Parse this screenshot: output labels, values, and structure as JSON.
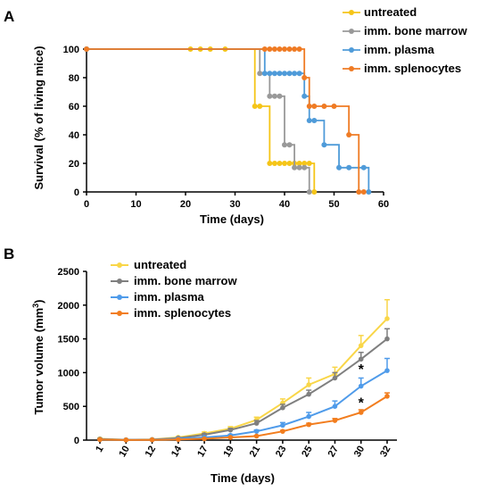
{
  "chart_data": [
    {
      "panel": "A",
      "type": "line",
      "xlabel": "Time (days)",
      "ylabel": "Survival (% of living mice)",
      "xlim": [
        0,
        60
      ],
      "ylim": [
        0,
        100
      ],
      "xticks": [
        0,
        10,
        20,
        30,
        40,
        50,
        60
      ],
      "yticks": [
        0,
        20,
        40,
        60,
        80,
        100
      ],
      "legend_position": "top-right",
      "series": [
        {
          "name": "untreated",
          "color": "#f5c518",
          "x": [
            0,
            21,
            23,
            25,
            28,
            34,
            35,
            37,
            38,
            39,
            40,
            41,
            42,
            43,
            44,
            45,
            46
          ],
          "y": [
            100,
            100,
            100,
            100,
            100,
            60,
            60,
            20,
            20,
            20,
            20,
            20,
            20,
            20,
            20,
            20,
            0
          ]
        },
        {
          "name": "imm. bone marrow",
          "color": "#999999",
          "x": [
            0,
            35,
            37,
            38,
            39,
            40,
            41,
            42,
            43,
            44,
            45
          ],
          "y": [
            100,
            83,
            67,
            67,
            67,
            33,
            33,
            17,
            17,
            17,
            0
          ]
        },
        {
          "name": "imm. plasma",
          "color": "#4f9bd9",
          "x": [
            0,
            36,
            37,
            38,
            39,
            40,
            41,
            42,
            43,
            44,
            45,
            46,
            48,
            51,
            53,
            56,
            57
          ],
          "y": [
            100,
            83,
            83,
            83,
            83,
            83,
            83,
            83,
            83,
            67,
            50,
            50,
            33,
            17,
            17,
            17,
            0
          ]
        },
        {
          "name": "imm. splenocytes",
          "color": "#ef7b24",
          "x": [
            0,
            36,
            37,
            38,
            39,
            40,
            41,
            42,
            43,
            44,
            45,
            46,
            48,
            50,
            53,
            55,
            56
          ],
          "y": [
            100,
            100,
            100,
            100,
            100,
            100,
            100,
            100,
            100,
            80,
            60,
            60,
            60,
            60,
            40,
            0,
            0
          ]
        }
      ]
    },
    {
      "panel": "B",
      "type": "line",
      "xlabel": "Time (days)",
      "ylabel": "Tumor volume (mm",
      "ylabel_sup": "3",
      "ylabel_end": ")",
      "categories": [
        "1",
        "10",
        "12",
        "14",
        "17",
        "19",
        "21",
        "23",
        "25",
        "27",
        "30",
        "32"
      ],
      "ylim": [
        0,
        2500
      ],
      "yticks": [
        0,
        500,
        1000,
        1500,
        2000,
        2500
      ],
      "legend_position": "top-left",
      "annotations": [
        {
          "text": "*",
          "category": "30",
          "y": 1060
        },
        {
          "text": "*",
          "category": "30",
          "y": 560
        }
      ],
      "series": [
        {
          "name": "untreated",
          "color": "#f9d648",
          "values": [
            20,
            5,
            10,
            40,
            100,
            170,
            300,
            550,
            820,
            980,
            1400,
            1800
          ],
          "errors": [
            10,
            5,
            5,
            10,
            20,
            30,
            40,
            60,
            100,
            100,
            150,
            280
          ]
        },
        {
          "name": "imm. bone marrow",
          "color": "#7f7f7f",
          "values": [
            15,
            5,
            8,
            30,
            80,
            150,
            250,
            480,
            680,
            920,
            1200,
            1500
          ],
          "errors": [
            8,
            5,
            5,
            10,
            15,
            25,
            40,
            50,
            60,
            80,
            100,
            150
          ]
        },
        {
          "name": "imm. plasma",
          "color": "#4f9bea",
          "values": [
            10,
            3,
            5,
            20,
            40,
            70,
            130,
            220,
            350,
            500,
            800,
            1030
          ],
          "errors": [
            5,
            3,
            3,
            8,
            10,
            15,
            20,
            40,
            60,
            80,
            120,
            180
          ]
        },
        {
          "name": "imm. splenocytes",
          "color": "#f27d1e",
          "values": [
            8,
            2,
            4,
            10,
            20,
            40,
            60,
            130,
            230,
            290,
            410,
            650
          ],
          "errors": [
            4,
            2,
            2,
            5,
            5,
            8,
            10,
            15,
            20,
            30,
            40,
            50
          ]
        }
      ]
    }
  ]
}
